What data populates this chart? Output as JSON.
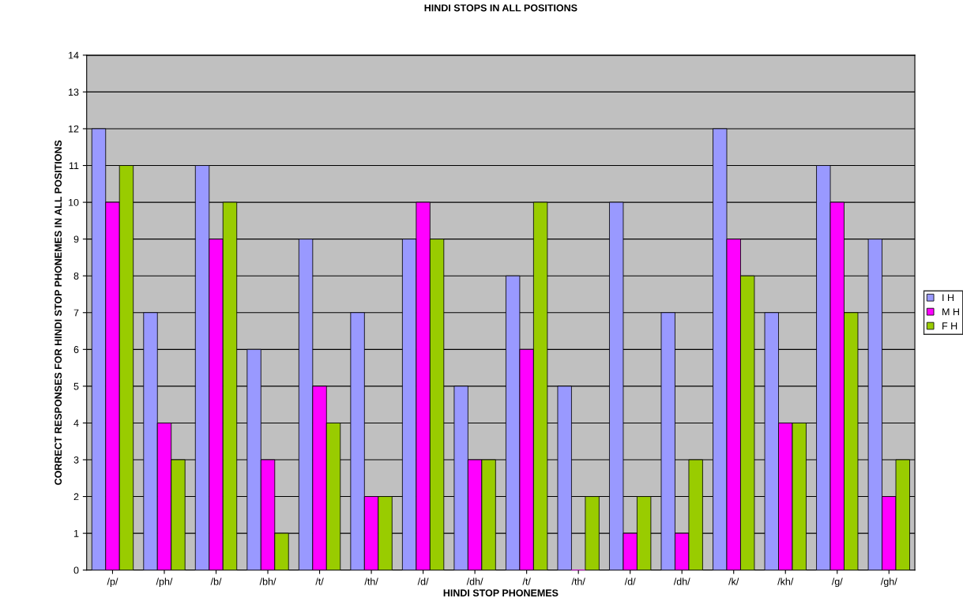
{
  "chart_data": {
    "type": "bar",
    "title": "HINDI STOPS IN ALL POSITIONS",
    "xlabel": "HINDI STOP PHONEMES",
    "ylabel": "CORRECT RESPONSES FOR HINDI STOP PHONEMES IN ALL POSITIONS",
    "categories": [
      "/p/",
      "/ph/",
      "/b/",
      "/bh/",
      "/t/",
      "/th/",
      "/d/",
      "/dh/",
      "/t/",
      "/th/",
      "/d/",
      "/dh/",
      "/k/",
      "/kh/",
      "/g/",
      "/gh/"
    ],
    "series": [
      {
        "name": "I H",
        "color": "#9999ff",
        "values": [
          12,
          7,
          11,
          6,
          9,
          7,
          9,
          5,
          8,
          5,
          10,
          7,
          12,
          7,
          11,
          9
        ]
      },
      {
        "name": "M H",
        "color": "#ff00ff",
        "values": [
          10,
          4,
          9,
          3,
          5,
          2,
          10,
          3,
          6,
          0,
          1,
          1,
          9,
          4,
          10,
          2
        ]
      },
      {
        "name": "F H",
        "color": "#99cc00",
        "values": [
          11,
          3,
          10,
          1,
          4,
          2,
          9,
          3,
          10,
          2,
          2,
          3,
          8,
          4,
          7,
          3
        ]
      }
    ],
    "ylim": [
      0,
      14
    ],
    "yticks": [
      0,
      1,
      2,
      3,
      4,
      5,
      6,
      7,
      8,
      9,
      10,
      11,
      12,
      13,
      14
    ],
    "grid": "y",
    "legend": "right"
  }
}
